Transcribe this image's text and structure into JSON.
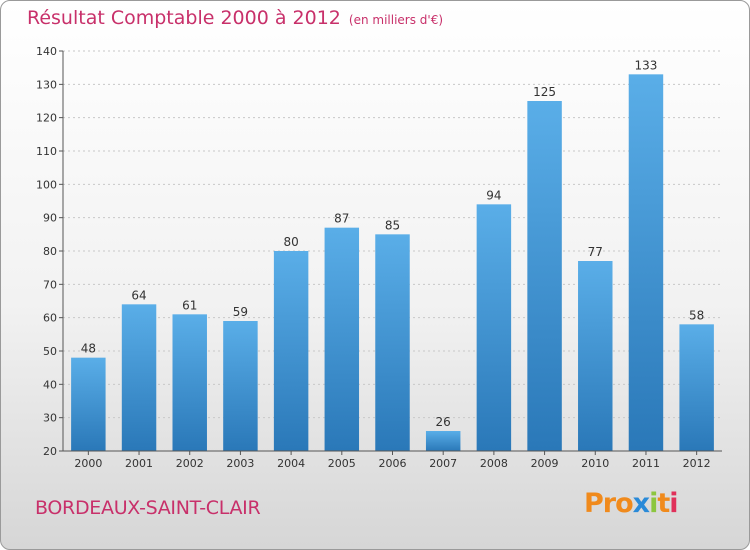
{
  "chart_data": {
    "type": "bar",
    "title": "Résultat Comptable 2000 à 2012",
    "subtitle": "(en milliers d'€)",
    "categories": [
      "2000",
      "2001",
      "2002",
      "2003",
      "2004",
      "2005",
      "2006",
      "2007",
      "2008",
      "2009",
      "2010",
      "2011",
      "2012"
    ],
    "values": [
      48,
      64,
      61,
      59,
      80,
      87,
      85,
      26,
      94,
      125,
      77,
      133,
      58
    ],
    "ylim": [
      20,
      140
    ],
    "yticks": [
      20,
      30,
      40,
      50,
      60,
      70,
      80,
      90,
      100,
      110,
      120,
      130,
      140
    ],
    "xlabel": "",
    "ylabel": "",
    "colors": {
      "bar_light": "#5aaee8",
      "bar_dark": "#2a78b8"
    }
  },
  "location": "BORDEAUX-SAINT-CLAIR",
  "logo": {
    "p1": "Pro",
    "x": "x",
    "i1": "i",
    "t": "t",
    "i2": "i"
  }
}
